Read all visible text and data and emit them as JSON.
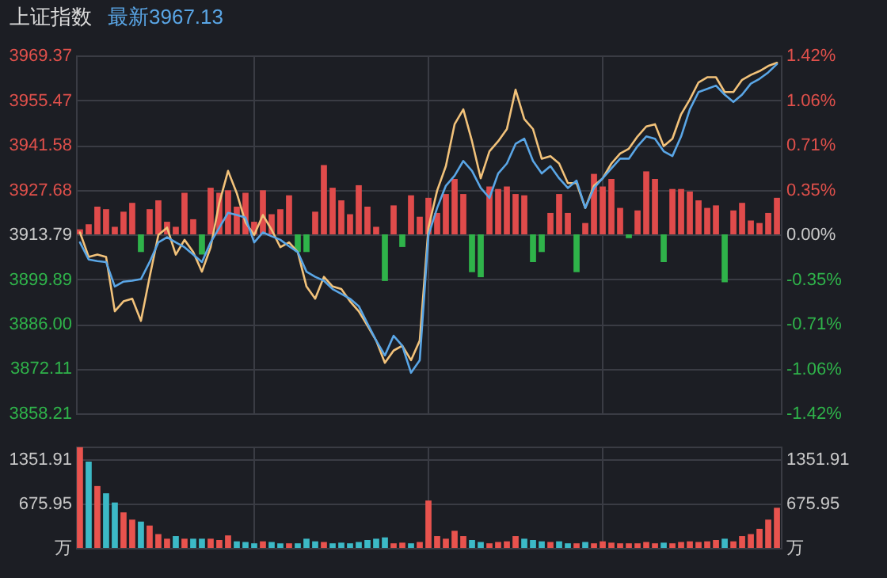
{
  "chart_data": [
    {
      "type": "line",
      "title": "上证指数",
      "subtitle": "最新3967.13",
      "categories": [
        null,
        null,
        null,
        null,
        null,
        null,
        null,
        null,
        null,
        null,
        null,
        null,
        null,
        null,
        null,
        null,
        null,
        null,
        null,
        null,
        null,
        null,
        null,
        null,
        null,
        null,
        null,
        null,
        null,
        null,
        null,
        null,
        null,
        null,
        null,
        null,
        null,
        null,
        null,
        null,
        null,
        null,
        null,
        null,
        null,
        null,
        null,
        null,
        null,
        null,
        null,
        null,
        null,
        null,
        null,
        null,
        null,
        null,
        null,
        null,
        null,
        null,
        null,
        null,
        null,
        null,
        null,
        null,
        null,
        null,
        null,
        null,
        null,
        null,
        null,
        null,
        null,
        null,
        null,
        null,
        null
      ],
      "series": [
        {
          "color": "#f2c27a",
          "values": [
            3914.4,
            3906.8,
            3907.5,
            3906.8,
            3889.9,
            3893.0,
            3893.8,
            3886.9,
            3900.6,
            3913.6,
            3915.9,
            3907.5,
            3912.1,
            3908.3,
            3902.2,
            3909.8,
            3923.6,
            3933.5,
            3926.6,
            3917.5,
            3913.6,
            3919.8,
            3915.2,
            3909.8,
            3911.3,
            3908.3,
            3897.6,
            3893.8,
            3900.6,
            3897.6,
            3896.8,
            3893.0,
            3889.9,
            3885.4,
            3880.8,
            3873.9,
            3877.7,
            3879.2,
            3874.7,
            3880.8,
            3915.9,
            3927.4,
            3935.0,
            3948.0,
            3952.6,
            3942.7,
            3931.2,
            3939.6,
            3942.7,
            3946.5,
            3958.7,
            3949.6,
            3946.5,
            3937.3,
            3938.1,
            3935.8,
            3929.7,
            3929.7,
            3922.0,
            3928.9,
            3931.2,
            3935.8,
            3938.9,
            3940.4,
            3944.2,
            3947.3,
            3948.0,
            3941.2,
            3943.5,
            3951.1,
            3955.7,
            3961.0,
            3962.6,
            3962.6,
            3958.0,
            3958.0,
            3961.8,
            3963.3,
            3964.5,
            3966.1,
            3967.1
          ]
        },
        {
          "color": "#5aa6e6",
          "values": [
            3911.3,
            3906.0,
            3905.5,
            3905.2,
            3897.6,
            3899.1,
            3899.4,
            3899.9,
            3905.2,
            3911.3,
            3912.9,
            3911.3,
            3909.8,
            3907.5,
            3905.2,
            3911.3,
            3915.9,
            3920.5,
            3919.8,
            3919.0,
            3911.3,
            3914.4,
            3913.2,
            3912.1,
            3910.1,
            3908.3,
            3902.2,
            3900.6,
            3899.4,
            3896.8,
            3895.3,
            3893.8,
            3891.5,
            3886.1,
            3880.8,
            3876.2,
            3882.3,
            3879.2,
            3870.8,
            3874.7,
            3913.6,
            3922.0,
            3928.9,
            3932.0,
            3936.6,
            3933.5,
            3928.2,
            3925.1,
            3932.7,
            3935.8,
            3941.9,
            3943.5,
            3936.6,
            3932.7,
            3935.0,
            3931.2,
            3928.2,
            3930.5,
            3922.0,
            3928.2,
            3931.2,
            3934.3,
            3937.3,
            3937.3,
            3941.2,
            3944.2,
            3943.5,
            3939.6,
            3938.1,
            3944.2,
            3952.6,
            3958.0,
            3959.0,
            3960.0,
            3957.2,
            3954.9,
            3957.2,
            3960.6,
            3962.1,
            3964.1,
            3966.7
          ]
        },
        {
          "type": "bar",
          "axis": "y2",
          "color": "#e04b4b",
          "values": [
            0.04,
            0.08,
            0.22,
            0.2,
            0.06,
            0.18,
            0.25,
            null,
            0.2,
            0.27,
            0.1,
            0.06,
            0.33,
            0.12,
            null,
            0.37,
            0.33,
            0.35,
            0.22,
            0.33,
            0.1,
            0.35,
            0.16,
            0.2,
            0.31,
            null,
            null,
            0.18,
            0.55,
            0.37,
            0.27,
            0.16,
            0.39,
            0.22,
            0.06,
            null,
            0.23,
            null,
            0.31,
            0.14,
            0.29,
            0.17,
            0.32,
            0.44,
            0.32,
            null,
            null,
            0.38,
            0.36,
            0.38,
            0.32,
            0.31,
            null,
            null,
            0.17,
            0.32,
            0.17,
            null,
            0.09,
            0.48,
            0.38,
            0.44,
            0.21,
            null,
            0.19,
            0.5,
            0.44,
            null,
            0.36,
            0.36,
            0.34,
            0.27,
            0.21,
            0.23,
            null,
            0.19,
            0.25,
            0.11,
            0.09,
            0.17,
            0.29
          ]
        },
        {
          "type": "bar",
          "axis": "y2",
          "color": "#2fb34a",
          "values": [
            null,
            null,
            null,
            null,
            null,
            null,
            null,
            -0.14,
            null,
            null,
            null,
            null,
            null,
            null,
            -0.16,
            null,
            null,
            null,
            null,
            null,
            null,
            null,
            null,
            null,
            null,
            -0.14,
            -0.14,
            null,
            null,
            null,
            null,
            null,
            null,
            null,
            null,
            -0.37,
            null,
            -0.1,
            null,
            null,
            null,
            null,
            null,
            null,
            null,
            -0.3,
            -0.34,
            null,
            null,
            null,
            null,
            null,
            -0.22,
            -0.14,
            null,
            null,
            null,
            -0.3,
            null,
            null,
            null,
            null,
            null,
            -0.03,
            null,
            null,
            null,
            -0.22,
            null,
            null,
            null,
            null,
            null,
            null,
            -0.38,
            null,
            null,
            null,
            null,
            null,
            null
          ]
        }
      ],
      "ylim": [
        3858.21,
        3969.37
      ],
      "yticks": [
        3969.37,
        3955.47,
        3941.58,
        3927.68,
        3913.79,
        3899.89,
        {
          "value": 3886,
          "label": "3886.00"
        },
        3872.11,
        3858.21
      ],
      "y2lim": [
        -1.42,
        1.42
      ],
      "y2ticks": [
        {
          "value": 1.42,
          "label": "1.42%"
        },
        {
          "value": 1.065,
          "label": "1.06%"
        },
        {
          "value": 0.71,
          "label": "0.71%"
        },
        {
          "value": 0.355,
          "label": "0.35%"
        },
        {
          "value": 0,
          "label": "0.00%"
        },
        {
          "value": -0.355,
          "label": "-0.35%"
        },
        {
          "value": -0.71,
          "label": "-0.71%"
        },
        {
          "value": -1.065,
          "label": "-1.06%"
        },
        {
          "value": -1.42,
          "label": "-1.42%"
        }
      ],
      "grid": true,
      "tick_labels": "y"
    },
    {
      "type": "bar",
      "categories": [
        null,
        null,
        null,
        null,
        null,
        null,
        null,
        null,
        null,
        null,
        null,
        null,
        null,
        null,
        null,
        null,
        null,
        null,
        null,
        null,
        null,
        null,
        null,
        null,
        null,
        null,
        null,
        null,
        null,
        null,
        null,
        null,
        null,
        null,
        null,
        null,
        null,
        null,
        null,
        null,
        null,
        null,
        null,
        null,
        null,
        null,
        null,
        null,
        null,
        null,
        null,
        null,
        null,
        null,
        null,
        null,
        null,
        null,
        null,
        null,
        null,
        null,
        null,
        null,
        null,
        null,
        null,
        null,
        null,
        null,
        null,
        null,
        null,
        null,
        null,
        null,
        null,
        null,
        null,
        null,
        null
      ],
      "values": [
        1530,
        1310,
        940,
        830,
        690,
        540,
        430,
        400,
        340,
        210,
        140,
        180,
        140,
        140,
        140,
        140,
        120,
        190,
        100,
        90,
        70,
        100,
        90,
        70,
        70,
        70,
        140,
        100,
        90,
        70,
        80,
        70,
        90,
        120,
        140,
        160,
        70,
        80,
        70,
        90,
        720,
        180,
        140,
        260,
        180,
        120,
        90,
        70,
        90,
        100,
        180,
        140,
        120,
        100,
        90,
        100,
        70,
        70,
        90,
        70,
        100,
        80,
        70,
        70,
        70,
        90,
        70,
        80,
        70,
        90,
        100,
        90,
        100,
        120,
        140,
        100,
        180,
        210,
        290,
        430,
        610
      ],
      "colors": [
        "#e8534e",
        "#3cb9c6",
        "#e8534e",
        "#3cb9c6",
        "#3cb9c6",
        "#e8534e",
        "#e8534e",
        "#3cb9c6",
        "#e8534e",
        "#e8534e",
        "#e8534e",
        "#3cb9c6",
        "#e8534e",
        "#3cb9c6",
        "#3cb9c6",
        "#e8534e",
        "#e8534e",
        "#e8534e",
        "#3cb9c6",
        "#3cb9c6",
        "#3cb9c6",
        "#e8534e",
        "#3cb9c6",
        "#3cb9c6",
        "#e8534e",
        "#3cb9c6",
        "#3cb9c6",
        "#3cb9c6",
        "#e8534e",
        "#3cb9c6",
        "#3cb9c6",
        "#3cb9c6",
        "#3cb9c6",
        "#3cb9c6",
        "#3cb9c6",
        "#3cb9c6",
        "#e8534e",
        "#e8534e",
        "#3cb9c6",
        "#e8534e",
        "#e8534e",
        "#e8534e",
        "#e8534e",
        "#e8534e",
        "#e8534e",
        "#3cb9c6",
        "#3cb9c6",
        "#e8534e",
        "#e8534e",
        "#e8534e",
        "#e8534e",
        "#3cb9c6",
        "#3cb9c6",
        "#3cb9c6",
        "#e8534e",
        "#3cb9c6",
        "#3cb9c6",
        "#e8534e",
        "#3cb9c6",
        "#e8534e",
        "#e8534e",
        "#e8534e",
        "#e8534e",
        "#e8534e",
        "#e8534e",
        "#e8534e",
        "#e8534e",
        "#3cb9c6",
        "#e8534e",
        "#e8534e",
        "#e8534e",
        "#e8534e",
        "#e8534e",
        "#e8534e",
        "#3cb9c6",
        "#e8534e",
        "#e8534e",
        "#e8534e",
        "#e8534e",
        "#e8534e",
        "#e8534e"
      ],
      "ylim": [
        0,
        1540
      ],
      "yticks": [
        {
          "value": 0,
          "label": "万"
        },
        675.95,
        1351.91
      ],
      "y2lim": [
        0,
        1540
      ],
      "y2ticks": [
        {
          "value": 0,
          "label": "万"
        },
        675.95,
        1351.91
      ],
      "grid": true,
      "tick_labels": "y"
    }
  ]
}
